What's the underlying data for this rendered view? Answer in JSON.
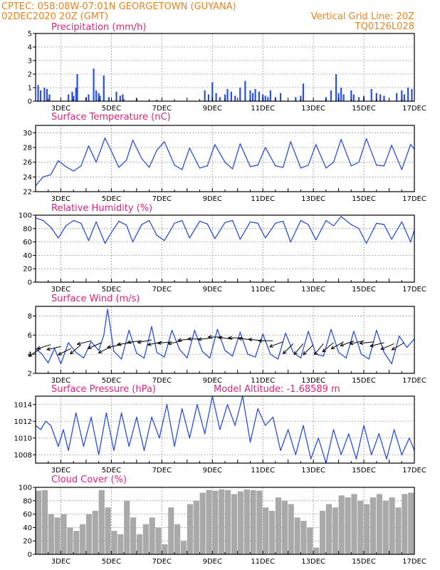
{
  "header": {
    "line1": "CPTEC:  058:08W-07:01N  GEORGETOWN (GUYANA)",
    "line2_left": "02DEC2020 20Z (GMT)",
    "line2_right": "Vertical Grid Line: 20Z",
    "code": "TQ0126L028"
  },
  "colors": {
    "header": "#e8821e",
    "title": "#e0207a",
    "series": "#2a4ee8",
    "cloud": "#a9a9a9",
    "frame": "#000000",
    "grid": "#9a9a9a"
  },
  "x_axis": {
    "tick_labels": [
      "3DEC",
      "5DEC",
      "7DEC",
      "9DEC",
      "11DEC",
      "13DEC",
      "15DEC",
      "17DEC"
    ],
    "tick_days": [
      3,
      5,
      7,
      9,
      11,
      13,
      15,
      17
    ],
    "range_days": [
      2.0,
      17.0
    ]
  },
  "chart_data": [
    {
      "type": "bar",
      "title": "Precipitation (mm/h)",
      "ylim": [
        0,
        5
      ],
      "yticks": [
        0,
        1,
        2,
        3,
        4,
        5
      ],
      "x_unit": "day of December 2020",
      "x": [
        2.1,
        2.2,
        2.35,
        2.45,
        2.55,
        3.3,
        3.45,
        3.5,
        3.6,
        3.65,
        4.0,
        4.1,
        4.3,
        4.4,
        4.5,
        4.55,
        4.7,
        4.9,
        5.2,
        5.35,
        5.45,
        6.0,
        6.8,
        8.7,
        8.85,
        9.0,
        9.15,
        9.3,
        9.5,
        9.6,
        9.75,
        9.9,
        10.1,
        10.3,
        10.5,
        10.6,
        10.7,
        10.85,
        11.0,
        11.1,
        11.2,
        11.3,
        11.5,
        11.7,
        12.3,
        12.5,
        12.6,
        13.5,
        13.7,
        13.9,
        14.0,
        14.1,
        14.2,
        14.5,
        14.6,
        14.8,
        15.0,
        15.3,
        15.5,
        15.65,
        15.8,
        16.3,
        16.5,
        16.6,
        16.75,
        16.9
      ],
      "values": [
        1.2,
        0.8,
        1.0,
        0.9,
        0.5,
        0.5,
        0.7,
        0.4,
        1.0,
        2.0,
        0.3,
        0.5,
        2.4,
        0.8,
        0.6,
        0.4,
        1.9,
        0.3,
        0.7,
        0.4,
        0.5,
        0.2,
        0.1,
        0.8,
        0.5,
        1.4,
        0.6,
        0.3,
        0.5,
        0.9,
        0.7,
        0.4,
        1.0,
        1.5,
        0.8,
        0.6,
        0.9,
        0.7,
        0.5,
        0.4,
        0.3,
        0.8,
        0.3,
        0.6,
        0.3,
        0.4,
        1.3,
        0.3,
        0.8,
        2.0,
        0.6,
        1.0,
        0.5,
        0.8,
        0.5,
        0.3,
        0.4,
        0.9,
        0.6,
        0.5,
        0.4,
        0.6,
        0.8,
        0.5,
        1.0,
        0.9
      ]
    },
    {
      "type": "line",
      "title": "Surface Temperature (nC)",
      "ylim": [
        22,
        31
      ],
      "yticks": [
        22,
        24,
        26,
        28,
        30
      ],
      "x_unit": "day of December 2020",
      "x": [
        2.0,
        2.3,
        2.6,
        2.9,
        3.2,
        3.5,
        3.8,
        4.1,
        4.4,
        4.75,
        5.0,
        5.3,
        5.6,
        5.85,
        6.2,
        6.5,
        6.8,
        7.1,
        7.5,
        7.8,
        8.1,
        8.5,
        8.8,
        9.1,
        9.5,
        9.8,
        10.1,
        10.5,
        10.8,
        11.1,
        11.5,
        11.8,
        12.1,
        12.5,
        12.8,
        13.1,
        13.5,
        13.8,
        14.1,
        14.5,
        14.8,
        15.1,
        15.5,
        15.8,
        16.1,
        16.5,
        16.85,
        17.0
      ],
      "values": [
        22.8,
        24.0,
        24.3,
        26.2,
        25.4,
        24.8,
        25.5,
        28.2,
        26.0,
        29.3,
        27.5,
        25.3,
        26.3,
        29.0,
        26.5,
        25.3,
        27.6,
        28.8,
        25.6,
        25.0,
        27.9,
        25.2,
        25.5,
        28.4,
        26.0,
        25.1,
        28.5,
        25.4,
        25.6,
        28.0,
        25.5,
        25.3,
        28.8,
        25.2,
        25.6,
        28.4,
        25.2,
        26.0,
        29.1,
        25.5,
        26.0,
        29.2,
        25.6,
        25.5,
        28.3,
        25.0,
        28.4,
        27.8
      ]
    },
    {
      "type": "line",
      "title": "Relative Humidity (%)",
      "ylim": [
        0,
        100
      ],
      "yticks": [
        0,
        20,
        40,
        60,
        80,
        100
      ],
      "x_unit": "day of December 2020",
      "x": [
        2.0,
        2.3,
        2.6,
        2.9,
        3.2,
        3.5,
        3.8,
        4.1,
        4.4,
        4.75,
        5.0,
        5.3,
        5.6,
        5.85,
        6.2,
        6.5,
        6.8,
        7.1,
        7.5,
        7.8,
        8.1,
        8.5,
        8.8,
        9.1,
        9.5,
        9.8,
        10.1,
        10.5,
        10.8,
        11.1,
        11.5,
        11.8,
        12.1,
        12.5,
        12.8,
        13.1,
        13.5,
        13.8,
        14.1,
        14.5,
        14.8,
        15.1,
        15.5,
        15.8,
        16.1,
        16.5,
        16.85,
        17.0
      ],
      "values": [
        96,
        92,
        82,
        66,
        84,
        92,
        88,
        62,
        90,
        58,
        74,
        91,
        85,
        60,
        86,
        92,
        70,
        62,
        88,
        92,
        66,
        91,
        87,
        65,
        89,
        92,
        64,
        90,
        88,
        66,
        88,
        91,
        60,
        92,
        86,
        63,
        92,
        84,
        98,
        86,
        80,
        58,
        88,
        86,
        64,
        90,
        60,
        78
      ]
    },
    {
      "type": "line",
      "title": "Surface Wind (m/s)",
      "ylim": [
        2,
        9
      ],
      "yticks": [
        2,
        4,
        6,
        8
      ],
      "x_unit": "day of December 2020",
      "x": [
        2.0,
        2.25,
        2.5,
        2.75,
        3.0,
        3.3,
        3.6,
        3.9,
        4.2,
        4.5,
        4.7,
        4.85,
        5.1,
        5.4,
        5.7,
        6.0,
        6.3,
        6.6,
        6.8,
        7.1,
        7.4,
        7.7,
        8.0,
        8.3,
        8.6,
        8.9,
        9.2,
        9.5,
        9.8,
        10.1,
        10.4,
        10.7,
        11.0,
        11.3,
        11.6,
        11.9,
        12.2,
        12.5,
        12.8,
        13.1,
        13.4,
        13.7,
        14.0,
        14.3,
        14.6,
        14.9,
        15.2,
        15.5,
        15.8,
        16.1,
        16.4,
        16.7,
        17.0
      ],
      "values": [
        4.6,
        4.0,
        3.1,
        4.6,
        3.0,
        5.2,
        4.2,
        3.6,
        5.3,
        4.4,
        6.0,
        8.7,
        4.3,
        3.5,
        6.5,
        4.1,
        3.6,
        6.9,
        4.2,
        3.7,
        6.5,
        4.5,
        3.6,
        6.5,
        4.3,
        3.6,
        6.6,
        4.4,
        3.8,
        6.3,
        4.0,
        3.7,
        6.1,
        4.0,
        3.5,
        6.2,
        4.2,
        3.6,
        6.4,
        4.0,
        3.8,
        6.6,
        4.2,
        3.6,
        6.4,
        4.0,
        3.5,
        6.5,
        4.2,
        3.0,
        5.9,
        4.7,
        5.6
      ],
      "vectors": {
        "x": [
          2.2,
          2.6,
          3.0,
          3.4,
          3.8,
          4.2,
          4.6,
          5.0,
          5.4,
          5.8,
          6.2,
          6.6,
          7.0,
          7.4,
          7.8,
          8.2,
          8.6,
          9.0,
          9.4,
          9.8,
          10.2,
          10.6,
          11.0,
          11.4,
          11.8,
          12.2,
          12.6,
          13.0,
          13.4,
          13.8,
          14.2,
          14.6,
          15.0,
          15.4,
          15.8,
          16.2,
          16.6
        ],
        "speed": [
          4.6,
          5.0,
          4.8,
          4.6,
          5.0,
          5.4,
          5.2,
          4.8,
          5.0,
          5.2,
          5.4,
          5.5,
          5.3,
          5.3,
          5.4,
          5.6,
          5.6,
          5.7,
          5.8,
          5.6,
          5.7,
          5.5,
          5.4,
          5.4,
          5.3,
          5.1,
          5.1,
          5.0,
          5.1,
          5.2,
          5.3,
          5.4,
          5.4,
          5.3,
          5.2,
          5.1,
          5.2
        ],
        "u": [
          -0.6,
          -1.0,
          -0.9,
          -1.0,
          -0.7,
          -0.8,
          -0.9,
          -0.6,
          -1.0,
          -0.8,
          -0.9,
          -1.0,
          -0.9,
          -1.0,
          -0.9,
          -1.0,
          -1.0,
          -0.9,
          -1.0,
          -0.95,
          -1.0,
          -1.0,
          -0.9,
          -0.9,
          -0.8,
          -0.6,
          -0.5,
          -0.5,
          -0.5,
          -0.6,
          -0.7,
          -0.8,
          -0.9,
          -0.9,
          -0.8,
          -0.7,
          -0.7
        ],
        "v": [
          -0.4,
          -0.3,
          -0.2,
          -0.5,
          -0.6,
          -0.2,
          -0.4,
          -0.3,
          -0.2,
          -0.1,
          -0.1,
          -0.2,
          -0.2,
          -0.1,
          -0.2,
          -0.1,
          0.0,
          -0.1,
          0.0,
          0.1,
          0.0,
          0.1,
          0.1,
          0.0,
          -0.3,
          -0.6,
          -0.6,
          -0.5,
          -0.6,
          -0.5,
          -0.4,
          -0.3,
          -0.2,
          -0.1,
          -0.2,
          -0.3,
          -0.4
        ]
      }
    },
    {
      "type": "line",
      "title": "Surface Pressure (hPa)",
      "annotation": "Model Altitude: -1.68589 m",
      "ylim": [
        1007,
        1015
      ],
      "yticks": [
        1008,
        1010,
        1012,
        1014
      ],
      "x_unit": "day of December 2020",
      "x": [
        2.0,
        2.2,
        2.4,
        2.6,
        2.9,
        3.1,
        3.3,
        3.6,
        3.9,
        4.2,
        4.5,
        4.8,
        5.1,
        5.4,
        5.7,
        6.0,
        6.3,
        6.6,
        6.9,
        7.2,
        7.5,
        7.8,
        8.1,
        8.4,
        8.7,
        9.0,
        9.3,
        9.6,
        9.9,
        10.2,
        10.5,
        10.8,
        11.1,
        11.4,
        11.7,
        12.0,
        12.3,
        12.6,
        12.9,
        13.2,
        13.5,
        13.8,
        14.1,
        14.4,
        14.7,
        15.0,
        15.3,
        15.6,
        15.9,
        16.2,
        16.5,
        16.8,
        17.0
      ],
      "values": [
        1011.5,
        1011.0,
        1012.0,
        1011.5,
        1009.0,
        1011.0,
        1008.5,
        1013.0,
        1009.0,
        1012.5,
        1008.0,
        1013.0,
        1008.5,
        1013.0,
        1009.0,
        1012.5,
        1008.5,
        1012.5,
        1010.0,
        1014.0,
        1009.0,
        1013.5,
        1010.0,
        1014.0,
        1010.5,
        1015.0,
        1011.0,
        1014.0,
        1011.5,
        1015.0,
        1009.5,
        1013.5,
        1011.5,
        1012.5,
        1008.5,
        1011.0,
        1008.0,
        1011.5,
        1007.5,
        1010.0,
        1007.0,
        1011.0,
        1008.0,
        1010.5,
        1007.5,
        1011.5,
        1008.0,
        1010.5,
        1007.5,
        1011.0,
        1008.0,
        1010.0,
        1008.5
      ]
    },
    {
      "type": "bar",
      "title": "Cloud Cover (%)",
      "ylim": [
        0,
        100
      ],
      "yticks": [
        0,
        20,
        40,
        60,
        80,
        100
      ],
      "x_unit": "day of December 2020",
      "x": [
        2.0,
        2.25,
        2.5,
        2.75,
        3.0,
        3.25,
        3.5,
        3.75,
        4.0,
        4.25,
        4.5,
        4.75,
        5.0,
        5.25,
        5.5,
        5.75,
        6.0,
        6.25,
        6.5,
        6.75,
        7.0,
        7.25,
        7.5,
        7.75,
        8.0,
        8.25,
        8.5,
        8.75,
        9.0,
        9.25,
        9.5,
        9.75,
        10.0,
        10.25,
        10.5,
        10.75,
        11.0,
        11.25,
        11.5,
        11.75,
        12.0,
        12.25,
        12.5,
        12.75,
        13.0,
        13.25,
        13.5,
        13.75,
        14.0,
        14.25,
        14.5,
        14.75,
        15.0,
        15.25,
        15.5,
        15.75,
        16.0,
        16.25,
        16.5,
        16.75
      ],
      "values": [
        95,
        96,
        60,
        55,
        60,
        40,
        35,
        45,
        60,
        65,
        96,
        70,
        35,
        30,
        80,
        55,
        30,
        45,
        55,
        40,
        15,
        70,
        45,
        20,
        75,
        80,
        92,
        96,
        95,
        97,
        96,
        90,
        94,
        97,
        96,
        95,
        70,
        65,
        85,
        80,
        75,
        55,
        50,
        40,
        10,
        65,
        75,
        70,
        88,
        85,
        90,
        80,
        75,
        85,
        90,
        80,
        85,
        70,
        90,
        92
      ]
    }
  ]
}
